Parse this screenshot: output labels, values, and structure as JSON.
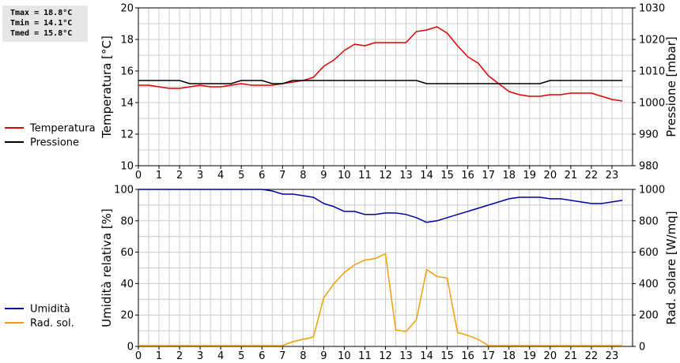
{
  "stats": {
    "tmax": "Tmax = 18.8°C",
    "tmin": "Tmin = 14.1°C",
    "tmed": "Tmed = 15.8°C"
  },
  "colors": {
    "temp": "#dd0000",
    "press": "#000000",
    "hum": "#0000aa",
    "rad": "#f0a000",
    "grid": "#cccccc"
  },
  "chart_data": [
    {
      "type": "line",
      "xlabel": "",
      "ylabel": "Temperatura [°C]",
      "y2label": "Pressione [mbar]",
      "xlim": [
        0,
        24
      ],
      "ylim": [
        10,
        20
      ],
      "y2lim": [
        980,
        1030
      ],
      "xticks": [
        0,
        1,
        2,
        3,
        4,
        5,
        6,
        7,
        8,
        9,
        10,
        11,
        12,
        13,
        14,
        15,
        16,
        17,
        18,
        19,
        20,
        21,
        22,
        23
      ],
      "yticks": [
        10,
        12,
        14,
        16,
        18,
        20
      ],
      "y2ticks": [
        980,
        990,
        1000,
        1010,
        1020,
        1030
      ],
      "legend": "left",
      "grid": true,
      "series": [
        {
          "name": "Temperatura",
          "axis": "left",
          "color": "#dd0000",
          "x": [
            0,
            0.5,
            1,
            1.5,
            2,
            2.5,
            3,
            3.5,
            4,
            4.5,
            5,
            5.5,
            6,
            6.5,
            7,
            7.5,
            8,
            8.5,
            9,
            9.5,
            10,
            10.5,
            11,
            11.5,
            12,
            12.5,
            13,
            13.5,
            14,
            14.5,
            15,
            15.5,
            16,
            16.5,
            17,
            17.5,
            18,
            18.5,
            19,
            19.5,
            20,
            20.5,
            21,
            21.5,
            22,
            22.5,
            23,
            23.5
          ],
          "y": [
            15.1,
            15.1,
            15.0,
            14.9,
            14.9,
            15.0,
            15.1,
            15.0,
            15.0,
            15.1,
            15.2,
            15.1,
            15.1,
            15.1,
            15.2,
            15.3,
            15.4,
            15.6,
            16.3,
            16.7,
            17.3,
            17.7,
            17.6,
            17.8,
            17.8,
            17.8,
            17.8,
            18.5,
            18.6,
            18.8,
            18.4,
            17.6,
            16.9,
            16.5,
            15.7,
            15.2,
            14.7,
            14.5,
            14.4,
            14.4,
            14.5,
            14.5,
            14.6,
            14.6,
            14.6,
            14.4,
            14.2,
            14.1
          ]
        },
        {
          "name": "Pressione",
          "axis": "right",
          "color": "#000000",
          "x": [
            0,
            1,
            2,
            2.5,
            3,
            4,
            4.5,
            5,
            5.5,
            6,
            6.5,
            7,
            7.5,
            8,
            9,
            10,
            11,
            12,
            13,
            13.5,
            14,
            15,
            16,
            17,
            18,
            19,
            19.5,
            20,
            21,
            22,
            23,
            23.5
          ],
          "y": [
            1007,
            1007,
            1007,
            1006,
            1006,
            1006,
            1006,
            1007,
            1007,
            1007,
            1006,
            1006,
            1007,
            1007,
            1007,
            1007,
            1007,
            1007,
            1007,
            1007,
            1006,
            1006,
            1006,
            1006,
            1006,
            1006,
            1006,
            1007,
            1007,
            1007,
            1007,
            1007
          ]
        }
      ]
    },
    {
      "type": "line",
      "xlabel": "",
      "ylabel": "Umidità relativa [%]",
      "y2label": "Rad. solare [W/mq]",
      "xlim": [
        0,
        24
      ],
      "ylim": [
        0,
        100
      ],
      "y2lim": [
        0,
        1000
      ],
      "xticks": [
        0,
        1,
        2,
        3,
        4,
        5,
        6,
        7,
        8,
        9,
        10,
        11,
        12,
        13,
        14,
        15,
        16,
        17,
        18,
        19,
        20,
        21,
        22,
        23
      ],
      "yticks": [
        0,
        20,
        40,
        60,
        80,
        100
      ],
      "y2ticks": [
        0,
        200,
        400,
        600,
        800,
        1000
      ],
      "legend": "left",
      "grid": true,
      "series": [
        {
          "name": "Umidità",
          "axis": "left",
          "color": "#0000aa",
          "x": [
            0,
            1,
            2,
            3,
            4,
            5,
            6,
            6.5,
            7,
            7.5,
            8,
            8.5,
            9,
            9.5,
            10,
            10.5,
            11,
            11.5,
            12,
            12.5,
            13,
            13.5,
            14,
            14.5,
            15,
            15.5,
            16,
            16.5,
            17,
            17.5,
            18,
            18.5,
            19,
            19.5,
            20,
            20.5,
            21,
            21.5,
            22,
            22.5,
            23,
            23.5
          ],
          "y": [
            100,
            100,
            100,
            100,
            100,
            100,
            100,
            99,
            97,
            97,
            96,
            95,
            91,
            89,
            86,
            86,
            84,
            84,
            85,
            85,
            84,
            82,
            79,
            80,
            82,
            84,
            86,
            88,
            90,
            92,
            94,
            95,
            95,
            95,
            94,
            94,
            93,
            92,
            91,
            91,
            92,
            93
          ]
        },
        {
          "name": "Rad. sol.",
          "axis": "right",
          "color": "#f0a000",
          "x": [
            0,
            1,
            2,
            3,
            4,
            5,
            6,
            7,
            7.5,
            8,
            8.5,
            9,
            9.5,
            10,
            10.5,
            11,
            11.5,
            12,
            12.5,
            13,
            13.5,
            14,
            14.5,
            15,
            15.5,
            16,
            16.5,
            17,
            17.5,
            18,
            19,
            20,
            21,
            22,
            23,
            23.5
          ],
          "y": [
            5,
            5,
            5,
            5,
            5,
            5,
            5,
            5,
            30,
            45,
            60,
            310,
            400,
            470,
            520,
            550,
            560,
            590,
            105,
            95,
            170,
            490,
            445,
            435,
            90,
            70,
            45,
            5,
            5,
            5,
            5,
            5,
            5,
            5,
            5,
            5
          ]
        }
      ]
    }
  ]
}
